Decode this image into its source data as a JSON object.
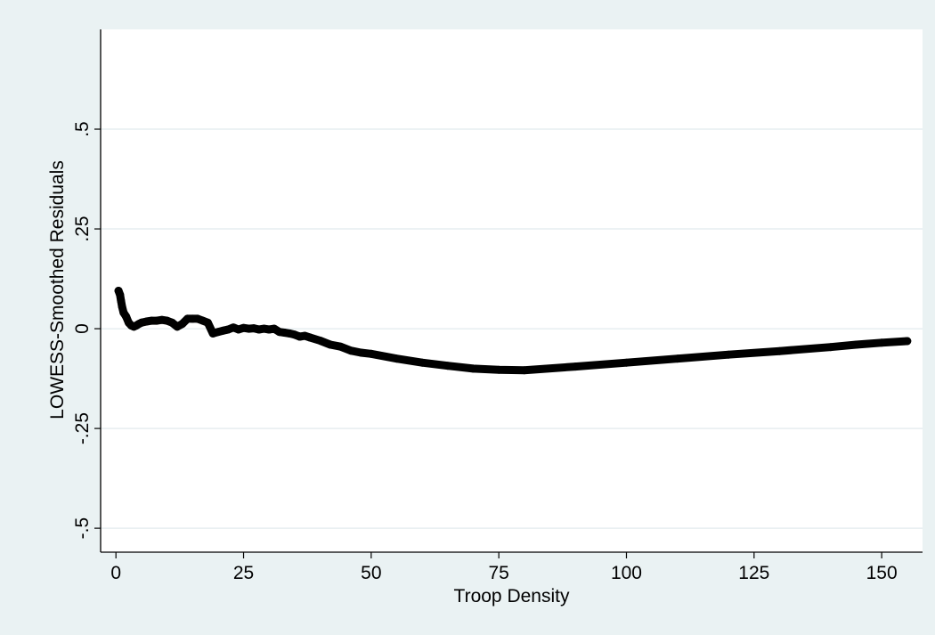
{
  "chart_data": {
    "type": "line",
    "title": "",
    "xlabel": "Troop Density",
    "ylabel": "LOWESS-Smoothed Residuals",
    "xlim": [
      -3,
      158
    ],
    "ylim": [
      -0.56,
      0.75
    ],
    "x_ticks": [
      {
        "value": 0,
        "label": "0"
      },
      {
        "value": 25,
        "label": "25"
      },
      {
        "value": 50,
        "label": "50"
      },
      {
        "value": 75,
        "label": "75"
      },
      {
        "value": 100,
        "label": "100"
      },
      {
        "value": 125,
        "label": "125"
      },
      {
        "value": 150,
        "label": "150"
      }
    ],
    "y_ticks": [
      {
        "value": -0.5,
        "label": "-.5"
      },
      {
        "value": -0.25,
        "label": "-.25"
      },
      {
        "value": 0,
        "label": "0"
      },
      {
        "value": 0.25,
        "label": ".25"
      },
      {
        "value": 0.5,
        "label": ".5"
      }
    ],
    "grid": true,
    "legend": "none",
    "colors": {
      "background": "#eaf2f3",
      "plot_background": "#ffffff",
      "grid": "#e6eef0",
      "line": "#000000"
    },
    "series": [
      {
        "x": [
          0.5,
          0.8,
          1.0,
          1.2,
          1.5,
          2.0,
          2.5,
          3.0,
          3.5,
          4.0,
          4.5,
          5.0,
          6.0,
          7.0,
          8.0,
          9.0,
          10.0,
          11.0,
          12.0,
          13.0,
          14.0,
          15.0,
          16.0,
          17.0,
          18.0,
          19.0,
          20.0,
          21.0,
          22.0,
          23.0,
          24.0,
          25.0,
          26.0,
          27.0,
          28.0,
          29.0,
          30.0,
          31.0,
          32.0,
          33.0,
          34.0,
          35.0,
          36.0,
          37.0,
          38.0,
          40.0,
          42.0,
          44.0,
          46.0,
          48.0,
          50.0,
          55.0,
          60.0,
          65.0,
          70.0,
          75.0,
          80.0,
          90.0,
          100.0,
          110.0,
          120.0,
          130.0,
          140.0,
          145.0,
          150.0,
          155.0
        ],
        "y": [
          0.095,
          0.085,
          0.07,
          0.055,
          0.04,
          0.03,
          0.015,
          0.008,
          0.005,
          0.008,
          0.012,
          0.015,
          0.018,
          0.02,
          0.02,
          0.022,
          0.02,
          0.015,
          0.005,
          0.012,
          0.025,
          0.025,
          0.025,
          0.02,
          0.015,
          -0.012,
          -0.008,
          -0.005,
          -0.002,
          0.003,
          -0.002,
          0.002,
          0.0,
          0.001,
          -0.002,
          0.0,
          -0.002,
          0.0,
          -0.008,
          -0.01,
          -0.012,
          -0.015,
          -0.02,
          -0.018,
          -0.022,
          -0.03,
          -0.04,
          -0.045,
          -0.055,
          -0.06,
          -0.063,
          -0.075,
          -0.085,
          -0.093,
          -0.1,
          -0.103,
          -0.104,
          -0.095,
          -0.085,
          -0.075,
          -0.065,
          -0.056,
          -0.046,
          -0.04,
          -0.035,
          -0.031
        ]
      }
    ]
  }
}
